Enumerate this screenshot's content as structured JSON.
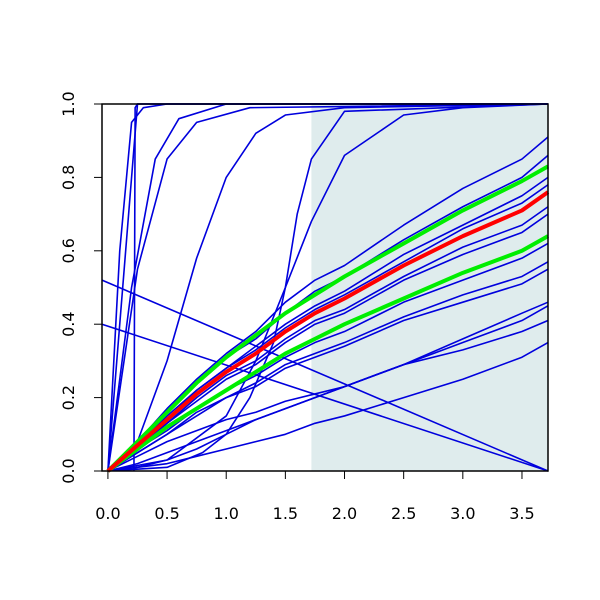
{
  "chart_data": {
    "type": "line",
    "xlim": [
      -0.05,
      3.72
    ],
    "ylim": [
      0,
      1
    ],
    "xticks": [
      {
        "value": 0,
        "label": "0.0"
      },
      0.5,
      {
        "value": 1,
        "label": "1.0"
      },
      1.5,
      {
        "value": 2,
        "label": "2.0"
      },
      2.5,
      {
        "value": 3,
        "label": "3.0"
      },
      3.5
    ],
    "yticks": [
      {
        "value": 0,
        "label": "0.0"
      },
      0.2,
      0.4,
      0.6,
      0.8,
      {
        "value": 1,
        "label": "1.0"
      }
    ],
    "shade": {
      "x": [
        1.72,
        3.72
      ],
      "color": "#dfeced"
    },
    "x": [
      0,
      0.25,
      0.5,
      0.75,
      1,
      1.25,
      1.5,
      1.75,
      2,
      2.5,
      3,
      3.5,
      3.72
    ],
    "series": [
      {
        "color": "#0000dd",
        "values": [
          0,
          0.08,
          0.17,
          0.25,
          0.32,
          0.38,
          0.46,
          0.52,
          0.56,
          0.67,
          0.77,
          0.85,
          0.91
        ]
      },
      {
        "color": "#0000dd",
        "values": [
          0,
          0.08,
          0.16,
          0.24,
          0.31,
          0.36,
          0.43,
          0.49,
          0.53,
          0.63,
          0.72,
          0.8,
          0.86
        ]
      },
      {
        "color": "#0000dd",
        "values": [
          0,
          0.07,
          0.15,
          0.22,
          0.28,
          0.34,
          0.4,
          0.45,
          0.49,
          0.59,
          0.67,
          0.75,
          0.8
        ]
      },
      {
        "color": "#0000dd",
        "values": [
          0,
          0.07,
          0.14,
          0.22,
          0.28,
          0.33,
          0.39,
          0.44,
          0.48,
          0.57,
          0.66,
          0.73,
          0.78
        ]
      },
      {
        "color": "#0000dd",
        "values": [
          0,
          0.07,
          0.13,
          0.2,
          0.26,
          0.3,
          0.36,
          0.41,
          0.44,
          0.53,
          0.61,
          0.67,
          0.72
        ]
      },
      {
        "color": "#0000dd",
        "values": [
          0,
          0.06,
          0.13,
          0.19,
          0.25,
          0.29,
          0.35,
          0.4,
          0.43,
          0.52,
          0.59,
          0.65,
          0.7
        ]
      },
      {
        "color": "#0000dd",
        "values": [
          0,
          0.06,
          0.11,
          0.17,
          0.22,
          0.26,
          0.31,
          0.35,
          0.38,
          0.46,
          0.52,
          0.58,
          0.62
        ]
      },
      {
        "color": "#0000dd",
        "values": [
          0,
          0.05,
          0.1,
          0.16,
          0.2,
          0.24,
          0.29,
          0.32,
          0.35,
          0.42,
          0.48,
          0.53,
          0.57
        ]
      },
      {
        "color": "#0000dd",
        "values": [
          0,
          0.05,
          0.1,
          0.15,
          0.2,
          0.23,
          0.28,
          0.31,
          0.34,
          0.41,
          0.46,
          0.51,
          0.55
        ]
      },
      {
        "color": "#0000dd",
        "values": [
          0,
          0.01,
          0.03,
          0.06,
          0.1,
          0.14,
          0.17,
          0.2,
          0.23,
          0.29,
          0.36,
          0.43,
          0.46
        ]
      },
      {
        "color": "#0000dd",
        "values": [
          0,
          0.02,
          0.05,
          0.08,
          0.11,
          0.14,
          0.17,
          0.2,
          0.23,
          0.29,
          0.35,
          0.41,
          0.45
        ]
      },
      {
        "color": "#0000dd",
        "values": [
          0,
          0.04,
          0.08,
          0.11,
          0.14,
          0.16,
          0.19,
          0.21,
          0.23,
          0.29,
          0.33,
          0.38,
          0.41
        ]
      },
      {
        "color": "#0000dd",
        "values": [
          0,
          0.01,
          0.02,
          0.04,
          0.06,
          0.08,
          0.1,
          0.13,
          0.15,
          0.2,
          0.25,
          0.31,
          0.35
        ]
      },
      {
        "color": "#0000dd",
        "x": [
          -0.05,
          3.72
        ],
        "values": [
          0.52,
          0
        ]
      },
      {
        "color": "#0000dd",
        "x": [
          -0.05,
          3.72
        ],
        "values": [
          0.4,
          0
        ]
      },
      {
        "color": "#0000dd",
        "x": [
          0,
          0.5,
          0.8,
          1,
          1.2,
          1.4,
          1.5,
          1.6,
          1.72,
          2,
          3.72
        ],
        "values": [
          0,
          0.01,
          0.05,
          0.1,
          0.2,
          0.35,
          0.5,
          0.7,
          0.85,
          0.98,
          1
        ]
      },
      {
        "color": "#0000dd",
        "x": [
          0,
          0.25,
          0.5,
          0.75,
          1,
          1.25,
          1.5,
          2,
          3.72
        ],
        "values": [
          0,
          0.08,
          0.3,
          0.58,
          0.8,
          0.92,
          0.97,
          0.99,
          1
        ]
      },
      {
        "color": "#0000dd",
        "x": [
          0,
          0.5,
          1,
          1.25,
          1.5,
          1.72,
          2,
          2.5,
          3,
          3.72
        ],
        "values": [
          0,
          0.03,
          0.15,
          0.3,
          0.5,
          0.68,
          0.86,
          0.97,
          0.99,
          1
        ]
      },
      {
        "color": "#0000dd",
        "x": [
          0,
          0.1,
          0.2,
          0.3,
          0.5,
          3.72
        ],
        "values": [
          0,
          0.6,
          0.95,
          0.99,
          1,
          1
        ]
      },
      {
        "color": "#0000dd",
        "x": [
          0,
          0.2,
          0.4,
          0.6,
          1,
          3.72
        ],
        "values": [
          0,
          0.5,
          0.85,
          0.96,
          1,
          1
        ]
      },
      {
        "color": "#0000dd",
        "x": [
          0,
          0.25,
          0.5,
          0.75,
          1.2,
          3.72
        ],
        "values": [
          0,
          0.55,
          0.85,
          0.95,
          0.99,
          1
        ]
      },
      {
        "color": "#0000dd",
        "x": [
          0.22,
          0.23,
          0.25,
          3.72
        ],
        "values": [
          0,
          0.99,
          1,
          1
        ]
      },
      {
        "color": "#0000dd",
        "x": [
          0,
          0.25,
          3.72
        ],
        "values": [
          0,
          1,
          1
        ]
      },
      {
        "color": "#00ee00",
        "width": 4,
        "values": [
          0,
          0.08,
          0.16,
          0.24,
          0.31,
          0.37,
          0.43,
          0.48,
          0.53,
          0.62,
          0.71,
          0.79,
          0.83
        ]
      },
      {
        "color": "#00ee00",
        "width": 4,
        "values": [
          0,
          0.06,
          0.12,
          0.17,
          0.22,
          0.27,
          0.32,
          0.36,
          0.4,
          0.47,
          0.54,
          0.6,
          0.64
        ]
      },
      {
        "color": "#ff0000",
        "width": 4,
        "values": [
          0,
          0.07,
          0.14,
          0.21,
          0.27,
          0.32,
          0.38,
          0.43,
          0.47,
          0.56,
          0.64,
          0.71,
          0.76
        ]
      }
    ]
  }
}
